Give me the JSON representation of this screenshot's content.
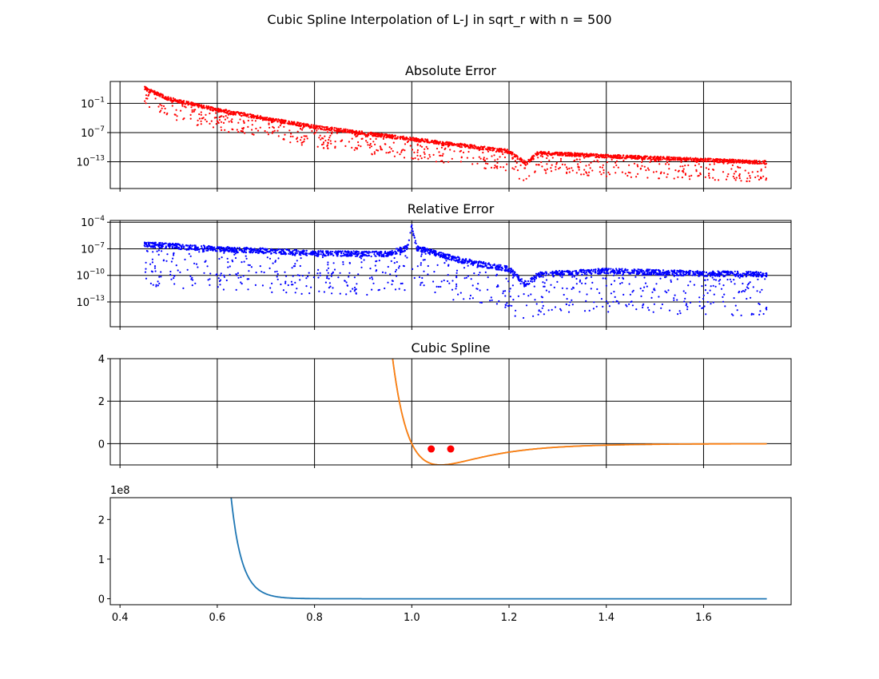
{
  "figure": {
    "title": "Cubic Spline Interpolation of L-J in sqrt_r with n = 500"
  },
  "chart_data": [
    {
      "type": "scatter",
      "title": "Absolute Error",
      "yscale": "log",
      "xlim": [
        0.38,
        1.78
      ],
      "ylim_exp": [
        -18.5,
        3.5
      ],
      "x_ticks": [
        0.4,
        0.6,
        0.8,
        1.0,
        1.2,
        1.4,
        1.6
      ],
      "y_ticks": [
        {
          "base": "10",
          "exp": "−1",
          "value_exp": -1
        },
        {
          "base": "10",
          "exp": "−7",
          "value_exp": -7
        },
        {
          "base": "10",
          "exp": "−13",
          "value_exp": -13
        }
      ],
      "grid": true,
      "color": "#ff0000",
      "envelope_log10": [
        [
          0.45,
          2.5
        ],
        [
          0.5,
          0.3
        ],
        [
          0.6,
          -2.0
        ],
        [
          0.8,
          -5.5
        ],
        [
          1.0,
          -8.0
        ],
        [
          1.2,
          -10.5
        ],
        [
          1.235,
          -13.0
        ],
        [
          1.26,
          -10.8
        ],
        [
          1.4,
          -11.5
        ],
        [
          1.6,
          -12.3
        ],
        [
          1.73,
          -12.8
        ]
      ]
    },
    {
      "type": "scatter",
      "title": "Relative Error",
      "yscale": "log",
      "xlim": [
        0.38,
        1.78
      ],
      "ylim_exp": [
        -15.8,
        -3.8
      ],
      "x_ticks": [
        0.4,
        0.6,
        0.8,
        1.0,
        1.2,
        1.4,
        1.6
      ],
      "y_ticks": [
        {
          "base": "10",
          "exp": "−4",
          "value_exp": -4
        },
        {
          "base": "10",
          "exp": "−7",
          "value_exp": -7
        },
        {
          "base": "10",
          "exp": "−13",
          "value_exp": -13
        }
      ],
      "y_ticks_extra": [
        {
          "base": "10",
          "exp": "−10",
          "value_exp": -10
        }
      ],
      "grid": true,
      "color": "#0000ff",
      "envelope_log10": [
        [
          0.45,
          -6.2
        ],
        [
          0.6,
          -6.7
        ],
        [
          0.8,
          -7.2
        ],
        [
          0.95,
          -7.3
        ],
        [
          0.99,
          -6.6
        ],
        [
          1.0,
          -4.3
        ],
        [
          1.01,
          -6.6
        ],
        [
          1.1,
          -8.0
        ],
        [
          1.2,
          -9.0
        ],
        [
          1.235,
          -10.7
        ],
        [
          1.26,
          -9.6
        ],
        [
          1.4,
          -9.2
        ],
        [
          1.6,
          -9.5
        ],
        [
          1.73,
          -9.6
        ]
      ]
    },
    {
      "type": "line",
      "title": "Cubic Spline",
      "xlim": [
        0.38,
        1.78
      ],
      "ylim": [
        -1,
        4
      ],
      "x_ticks": [
        0.4,
        0.6,
        0.8,
        1.0,
        1.2,
        1.4,
        1.6
      ],
      "y_ticks": [
        0,
        2,
        4
      ],
      "grid": true,
      "series": [
        {
          "color": "#1f77b4",
          "function": "lj_sqrt_r"
        },
        {
          "color": "#ff7f0e",
          "function": "lj_sqrt_r"
        }
      ],
      "markers": {
        "color": "#ff0000",
        "x": [
          1.04,
          1.08
        ],
        "y": [
          -0.25,
          -0.25
        ]
      }
    },
    {
      "type": "line",
      "xlim": [
        0.38,
        1.78
      ],
      "ylim": [
        -0.15,
        2.55
      ],
      "x_ticks": [
        "0.4",
        "0.6",
        "0.8",
        "1.0",
        "1.2",
        "1.4",
        "1.6"
      ],
      "y_ticks": [
        0,
        1,
        2
      ],
      "y_offset_label": "1e8",
      "grid": false,
      "series": [
        {
          "color": "#1f77b4",
          "function": "lj_second_derivative_scaled_1e8"
        }
      ]
    }
  ]
}
